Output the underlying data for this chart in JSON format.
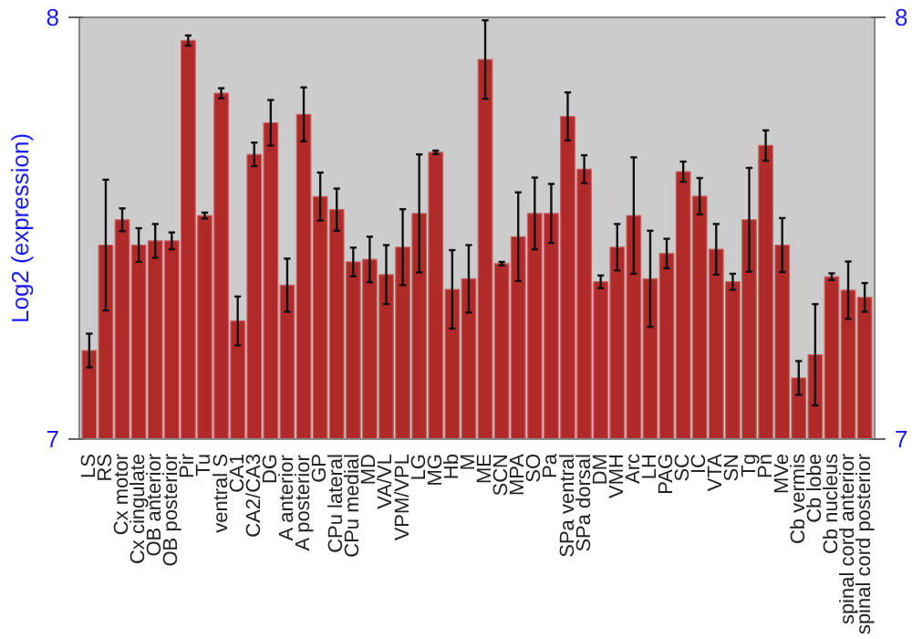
{
  "chart_data": {
    "type": "bar",
    "ylabel": "Log2 (expression)",
    "categories": [
      "LS",
      "RS",
      "Cx motor",
      "Cx cingulate",
      "OB anterior",
      "OB posterior",
      "Pir",
      "Tu",
      "ventral S",
      "CA1",
      "CA2/CA3",
      "DG",
      "A anterior",
      "A posterior",
      "GP",
      "CPu lateral",
      "CPu medial",
      "MD",
      "VA/VL",
      "VPM/VPL",
      "LG",
      "MG",
      "Hb",
      "M",
      "ME",
      "SCN",
      "MPA",
      "SO",
      "Pa",
      "SPa ventral",
      "SPa dorsal",
      "DM",
      "VMH",
      "Arc",
      "LH",
      "PAG",
      "SC",
      "IC",
      "VTA",
      "SN",
      "Tg",
      "Pn",
      "MVe",
      "Cb vermis",
      "Cb lobe",
      "Cb nucleus",
      "spinal cord anterior",
      "spinal cord posterior"
    ],
    "values": [
      7.21,
      7.46,
      7.52,
      7.46,
      7.47,
      7.47,
      7.945,
      7.53,
      7.82,
      7.28,
      7.675,
      7.75,
      7.365,
      7.77,
      7.575,
      7.544,
      7.42,
      7.426,
      7.39,
      7.455,
      7.535,
      7.68,
      7.355,
      7.38,
      7.9,
      7.416,
      7.48,
      7.535,
      7.535,
      7.765,
      7.64,
      7.373,
      7.455,
      7.53,
      7.38,
      7.44,
      7.634,
      7.576,
      7.45,
      7.373,
      7.52,
      7.696,
      7.46,
      7.145,
      7.2,
      7.385,
      7.353,
      7.336
    ],
    "errors": [
      0.04,
      0.155,
      0.027,
      0.04,
      0.04,
      0.02,
      0.012,
      0.007,
      0.012,
      0.058,
      0.028,
      0.054,
      0.063,
      0.064,
      0.057,
      0.05,
      0.034,
      0.054,
      0.07,
      0.09,
      0.14,
      0.004,
      0.093,
      0.08,
      0.093,
      0.004,
      0.105,
      0.085,
      0.07,
      0.057,
      0.033,
      0.015,
      0.055,
      0.138,
      0.114,
      0.035,
      0.024,
      0.043,
      0.06,
      0.019,
      0.123,
      0.036,
      0.064,
      0.04,
      0.12,
      0.008,
      0.068,
      0.034
    ],
    "color": "#b02a2a",
    "ylim": [
      7,
      8
    ],
    "yticks": [
      7,
      8
    ],
    "y2lim": [
      7,
      8
    ],
    "y2ticks": [
      7,
      8
    ],
    "grid": false
  }
}
